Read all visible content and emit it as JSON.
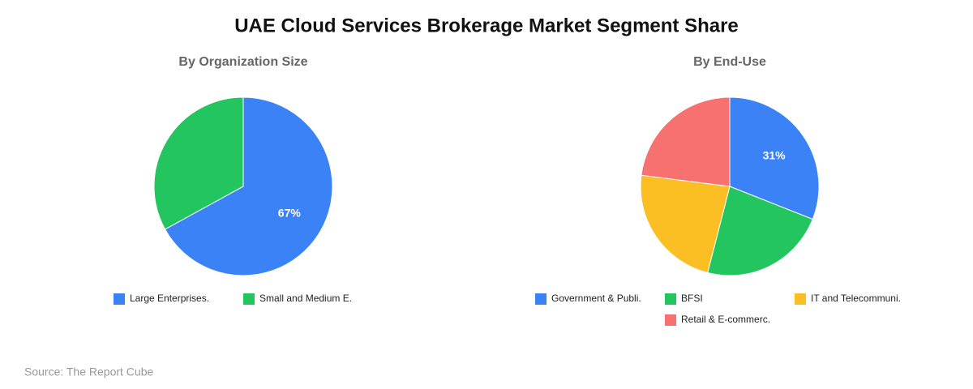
{
  "title": "UAE Cloud Services Brokerage Market Segment Share",
  "source": "Source: The Report Cube",
  "chart_data": [
    {
      "type": "pie",
      "title": "By Organization Size",
      "categories": [
        "Large Enterprises.",
        "Small and Medium E."
      ],
      "values": [
        67,
        33
      ],
      "value_labels": [
        "67%",
        null
      ],
      "colors": [
        "#3b82f6",
        "#22c55e"
      ]
    },
    {
      "type": "pie",
      "title": "By End-Use",
      "categories": [
        "Government & Publi.",
        "BFSI",
        "IT and Telecommuni.",
        "Retail & E-commerc."
      ],
      "values": [
        31,
        23,
        23,
        23
      ],
      "value_labels": [
        "31%",
        null,
        null,
        null
      ],
      "colors": [
        "#3b82f6",
        "#22c55e",
        "#fbbf24",
        "#f87171"
      ]
    }
  ]
}
